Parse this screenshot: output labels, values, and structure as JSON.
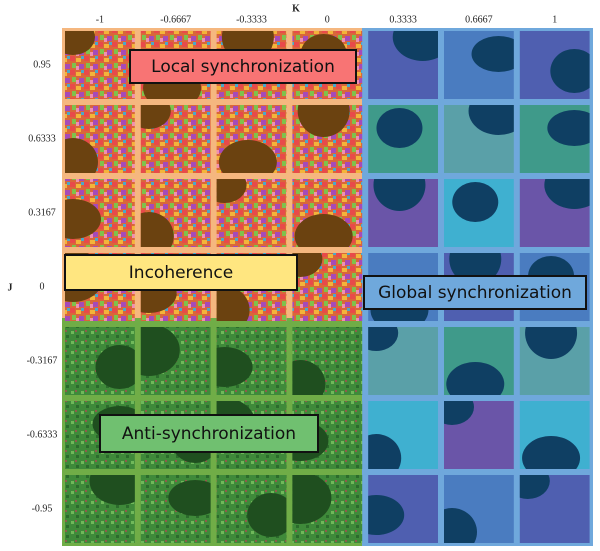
{
  "axis_labels": {
    "x": "K",
    "y": "J"
  },
  "columns": [
    "-1",
    "-0.6667",
    "-0.3333",
    "0",
    "0.3333",
    "0.6667",
    "1"
  ],
  "rows": [
    "0.95",
    "0.6333",
    "0.3167",
    "0",
    "-0.3167",
    "-0.6333",
    "-0.95"
  ],
  "regions": {
    "local": "Local synchronization",
    "incoherence": "Incoherence",
    "global": "Global synchronization",
    "anti": "Anti-synchronization"
  }
}
